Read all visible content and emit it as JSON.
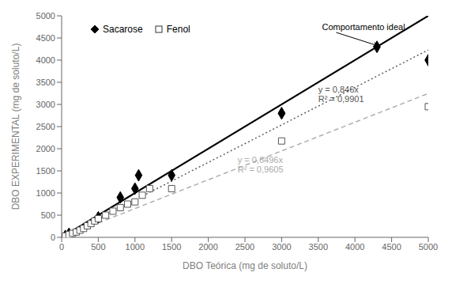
{
  "chart_data": {
    "type": "scatter",
    "xlabel": "DBO Teórica (mg de soluto/L)",
    "ylabel": "DBO EXPERIMENTAL (mg de soluto/L)",
    "xlim": [
      0,
      5000
    ],
    "ylim": [
      0,
      5000
    ],
    "xticks": [
      0,
      500,
      1000,
      1500,
      2000,
      2500,
      3000,
      3500,
      4000,
      4500,
      5000
    ],
    "yticks": [
      0,
      500,
      1000,
      1500,
      2000,
      2500,
      3000,
      3500,
      4000,
      4500,
      5000
    ],
    "grid": false,
    "legend": "upper left",
    "series": [
      {
        "type": "line",
        "color": "#000000",
        "line_style": "solid",
        "x": [
          0,
          5000
        ],
        "values": [
          0,
          5000
        ]
      },
      {
        "type": "line",
        "color": "#555555",
        "line_style": "dotted",
        "x": [
          0,
          5000
        ],
        "values": [
          0,
          4230
        ]
      },
      {
        "type": "line",
        "color": "#aaaaaa",
        "line_style": "dashed",
        "x": [
          0,
          5000
        ],
        "values": [
          0,
          3248
        ]
      },
      {
        "type": "scatter",
        "name": "Sacarose",
        "color": "#000000",
        "marker": "diamond",
        "x": [
          50,
          100,
          500,
          800,
          1000,
          1050,
          1500,
          3000,
          3000,
          4300,
          5000
        ],
        "values": [
          30,
          80,
          450,
          900,
          1100,
          1400,
          1400,
          2800,
          2800,
          4300,
          4000
        ]
      },
      {
        "type": "scatter",
        "name": "Fenol",
        "color": "#555555",
        "marker": "square",
        "x": [
          50,
          100,
          150,
          200,
          250,
          300,
          350,
          400,
          450,
          500,
          600,
          700,
          800,
          900,
          1000,
          1100,
          1200,
          1500,
          3000,
          5000
        ],
        "values": [
          30,
          60,
          90,
          120,
          160,
          200,
          260,
          310,
          370,
          420,
          500,
          590,
          670,
          750,
          800,
          950,
          1100,
          1100,
          2175,
          2950
        ]
      }
    ],
    "annotations": [
      {
        "text": "y = 0,846x\nR² = 0,9901",
        "color": "#555555"
      },
      {
        "text": "y = 0,6496x\nR² = 0,9605",
        "color": "#aaaaaa"
      },
      {
        "text": "Comportamento ideal"
      }
    ]
  }
}
